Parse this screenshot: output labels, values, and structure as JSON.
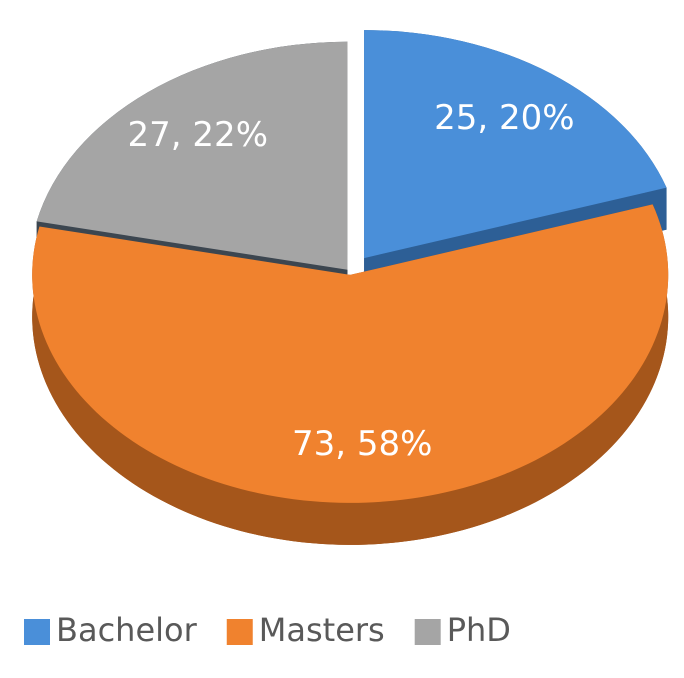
{
  "chart_data": {
    "type": "pie",
    "categories": [
      "Bachelor",
      "Masters",
      "PhD"
    ],
    "values": [
      25,
      73,
      27
    ],
    "value_labels": [
      "25, 20%",
      "73, 58%",
      "27, 22%"
    ],
    "colors": [
      "#4a8fd9",
      "#f0822e",
      "#a5a5a5"
    ],
    "side_colors": [
      "#2d5f96",
      "#a5561b",
      "#3c4650"
    ],
    "legend": "bottom"
  }
}
